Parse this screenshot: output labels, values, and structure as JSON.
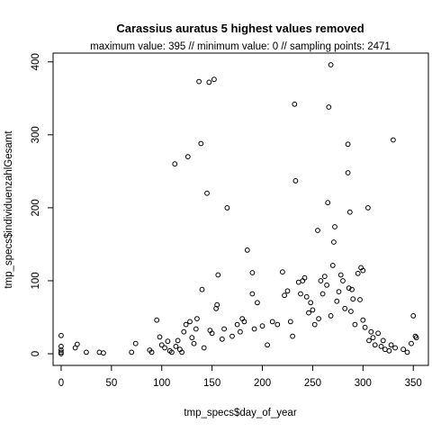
{
  "chart_data": {
    "type": "scatter",
    "title": "Carassius auratus  5 highest values removed",
    "subtitle": "maximum value: 395  //  minimum value: 0  // sampling points: 2471",
    "xlabel": "tmp_specs$day_of_year",
    "ylabel": "tmp_specs$individuenzahlGesamt",
    "xlim": [
      -8,
      365
    ],
    "ylim": [
      -16,
      412
    ],
    "x_ticks": [
      "0",
      "50",
      "100",
      "150",
      "200",
      "250",
      "300",
      "350"
    ],
    "y_ticks": [
      "0",
      "100",
      "200",
      "300",
      "400"
    ],
    "marker": "open-circle",
    "grid": false,
    "points": [
      [
        0,
        25
      ],
      [
        0,
        10
      ],
      [
        0,
        5
      ],
      [
        0,
        2
      ],
      [
        0,
        0
      ],
      [
        14,
        8
      ],
      [
        16,
        13
      ],
      [
        25,
        2
      ],
      [
        38,
        2
      ],
      [
        42,
        1
      ],
      [
        70,
        2
      ],
      [
        74,
        14
      ],
      [
        88,
        5
      ],
      [
        90,
        2
      ],
      [
        95,
        46
      ],
      [
        98,
        23
      ],
      [
        100,
        12
      ],
      [
        103,
        8
      ],
      [
        106,
        17
      ],
      [
        108,
        4
      ],
      [
        110,
        2
      ],
      [
        113,
        260
      ],
      [
        114,
        10
      ],
      [
        116,
        18
      ],
      [
        118,
        6
      ],
      [
        120,
        2
      ],
      [
        122,
        30
      ],
      [
        124,
        40
      ],
      [
        126,
        270
      ],
      [
        128,
        44
      ],
      [
        130,
        22
      ],
      [
        132,
        14
      ],
      [
        134,
        34
      ],
      [
        135,
        48
      ],
      [
        137,
        373
      ],
      [
        139,
        288
      ],
      [
        140,
        88
      ],
      [
        142,
        8
      ],
      [
        145,
        220
      ],
      [
        147,
        372
      ],
      [
        148,
        32
      ],
      [
        150,
        28
      ],
      [
        152,
        376
      ],
      [
        154,
        62
      ],
      [
        155,
        67
      ],
      [
        156,
        108
      ],
      [
        160,
        20
      ],
      [
        162,
        34
      ],
      [
        165,
        200
      ],
      [
        170,
        24
      ],
      [
        175,
        40
      ],
      [
        178,
        30
      ],
      [
        180,
        48
      ],
      [
        182,
        44
      ],
      [
        185,
        142
      ],
      [
        190,
        111
      ],
      [
        190,
        82
      ],
      [
        192,
        34
      ],
      [
        195,
        70
      ],
      [
        200,
        38
      ],
      [
        205,
        12
      ],
      [
        210,
        44
      ],
      [
        215,
        40
      ],
      [
        220,
        112
      ],
      [
        222,
        80
      ],
      [
        225,
        86
      ],
      [
        228,
        44
      ],
      [
        230,
        24
      ],
      [
        232,
        342
      ],
      [
        233,
        237
      ],
      [
        236,
        98
      ],
      [
        238,
        82
      ],
      [
        240,
        100
      ],
      [
        242,
        104
      ],
      [
        244,
        78
      ],
      [
        246,
        56
      ],
      [
        248,
        70
      ],
      [
        250,
        60
      ],
      [
        252,
        40
      ],
      [
        255,
        169
      ],
      [
        256,
        48
      ],
      [
        258,
        100
      ],
      [
        260,
        82
      ],
      [
        262,
        106
      ],
      [
        264,
        94
      ],
      [
        265,
        207
      ],
      [
        266,
        338
      ],
      [
        268,
        396
      ],
      [
        268,
        52
      ],
      [
        270,
        121
      ],
      [
        271,
        153
      ],
      [
        272,
        174
      ],
      [
        274,
        72
      ],
      [
        276,
        85
      ],
      [
        278,
        108
      ],
      [
        280,
        100
      ],
      [
        282,
        62
      ],
      [
        285,
        287
      ],
      [
        285,
        248
      ],
      [
        286,
        90
      ],
      [
        287,
        194
      ],
      [
        288,
        58
      ],
      [
        289,
        88
      ],
      [
        290,
        75
      ],
      [
        292,
        40
      ],
      [
        295,
        110
      ],
      [
        297,
        74
      ],
      [
        298,
        118
      ],
      [
        300,
        114
      ],
      [
        300,
        46
      ],
      [
        302,
        36
      ],
      [
        305,
        200
      ],
      [
        306,
        18
      ],
      [
        308,
        30
      ],
      [
        310,
        22
      ],
      [
        312,
        12
      ],
      [
        315,
        28
      ],
      [
        318,
        10
      ],
      [
        320,
        18
      ],
      [
        322,
        6
      ],
      [
        326,
        4
      ],
      [
        328,
        12
      ],
      [
        330,
        293
      ],
      [
        332,
        8
      ],
      [
        340,
        6
      ],
      [
        344,
        2
      ],
      [
        348,
        14
      ],
      [
        350,
        52
      ],
      [
        352,
        24
      ],
      [
        353,
        22
      ]
    ]
  }
}
